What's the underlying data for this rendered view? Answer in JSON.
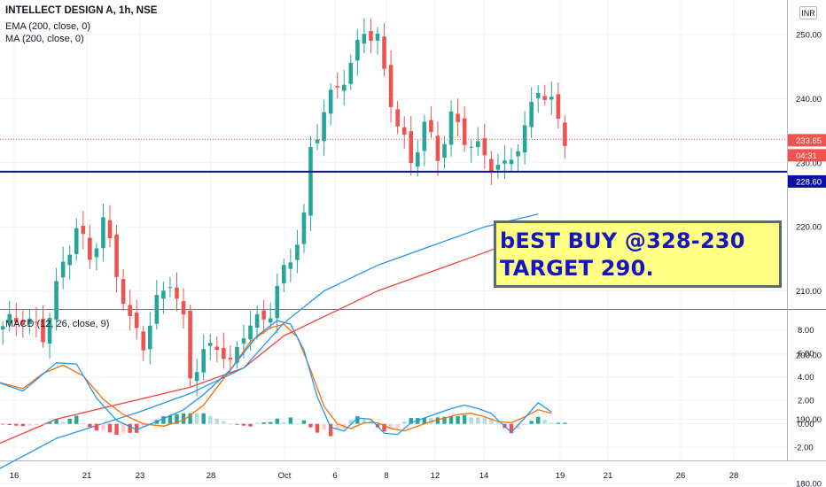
{
  "header": {
    "title": "INTELLECT DESIGN A, 1h, NSE",
    "ema_label": "EMA (200, close, 0)",
    "ma_label": "MA (200, close, 0)",
    "macd_label": "MACD (12, 26, close, 9)",
    "currency": "INR"
  },
  "annotation": {
    "line1": "bEST BUY @328-230",
    "line2": "TARGET 290."
  },
  "price_axis": {
    "ticks": [
      "250.00",
      "240.00",
      "230.00",
      "220.00",
      "210.00",
      "200.00",
      "190.00",
      "180.00"
    ]
  },
  "macd_axis": {
    "ticks": [
      "8.00",
      "6.00",
      "4.00",
      "2.00",
      "0.00",
      "-2.00"
    ]
  },
  "time_axis": {
    "ticks": [
      "16",
      "21",
      "23",
      "28",
      "Oct",
      "6",
      "8",
      "12",
      "14",
      "19",
      "21",
      "26",
      "28"
    ]
  },
  "price_badges": {
    "last": "233.65",
    "countdown": "04:31",
    "level": "228.60"
  },
  "colors": {
    "up": "#26a69a",
    "down": "#ef5350",
    "ema": "#2196f3",
    "ma": "#f44336",
    "level_line": "#0b0fa8",
    "macd_line": "#2196f3",
    "signal_line": "#ff6d00",
    "hist_up_strong": "#26a69a",
    "hist_up_weak": "#b2dfdb",
    "hist_down_strong": "#ef5350",
    "hist_down_weak": "#ffcdd2"
  },
  "chart_data": {
    "type": "candlestick",
    "title": "INTELLECT DESIGN A, 1h, NSE",
    "price_ylim": [
      180,
      255
    ],
    "macd_ylim": [
      -3,
      9
    ],
    "horizontal_level": 228.6,
    "last_price": 233.65,
    "price_path": [
      [
        -1,
        204
      ],
      [
        3,
        206
      ],
      [
        6,
        203
      ],
      [
        9,
        214
      ],
      [
        11,
        220
      ],
      [
        13,
        215
      ],
      [
        15,
        221
      ],
      [
        17,
        213
      ],
      [
        19,
        205
      ],
      [
        21,
        202
      ],
      [
        23,
        208
      ],
      [
        25,
        212
      ],
      [
        27,
        205
      ],
      [
        28,
        197
      ],
      [
        30,
        200
      ],
      [
        32,
        202
      ],
      [
        34,
        198
      ],
      [
        36,
        204
      ],
      [
        38,
        205
      ],
      [
        40,
        207
      ],
      [
        42,
        213
      ],
      [
        44,
        218
      ],
      [
        45,
        221
      ],
      [
        46,
        232
      ],
      [
        48,
        238
      ],
      [
        50,
        242
      ],
      [
        52,
        245
      ],
      [
        54,
        251
      ],
      [
        56,
        249
      ],
      [
        57,
        244
      ],
      [
        59,
        236
      ],
      [
        61,
        230
      ],
      [
        63,
        236
      ],
      [
        65,
        231
      ],
      [
        67,
        237
      ],
      [
        69,
        234
      ],
      [
        71,
        232
      ],
      [
        73,
        230
      ],
      [
        75,
        229
      ],
      [
        76,
        231
      ],
      [
        78,
        235
      ],
      [
        80,
        242
      ],
      [
        82,
        239
      ],
      [
        84,
        234
      ]
    ],
    "ema200": [
      [
        -1,
        182
      ],
      [
        8,
        187
      ],
      [
        20,
        191
      ],
      [
        28,
        194
      ],
      [
        36,
        198
      ],
      [
        42,
        205
      ],
      [
        48,
        210
      ],
      [
        56,
        214
      ],
      [
        64,
        217
      ],
      [
        72,
        220
      ],
      [
        80,
        222
      ]
    ],
    "ma200": [
      [
        -1,
        186
      ],
      [
        8,
        190
      ],
      [
        20,
        193
      ],
      [
        28,
        195
      ],
      [
        36,
        198
      ],
      [
        42,
        203
      ],
      [
        48,
        206
      ],
      [
        56,
        210
      ],
      [
        64,
        213
      ],
      [
        72,
        216
      ],
      [
        80,
        219
      ]
    ],
    "macd": [
      [
        -1,
        3.6
      ],
      [
        3,
        2.8
      ],
      [
        8,
        5.2
      ],
      [
        11,
        5.1
      ],
      [
        14,
        2.2
      ],
      [
        17,
        0.3
      ],
      [
        20,
        -0.5
      ],
      [
        23,
        0.2
      ],
      [
        27,
        1.2
      ],
      [
        30,
        2.5
      ],
      [
        34,
        4.6
      ],
      [
        38,
        7.5
      ],
      [
        41,
        8.8
      ],
      [
        43,
        8.5
      ],
      [
        45,
        6.3
      ],
      [
        47,
        2.3
      ],
      [
        49,
        -0.3
      ],
      [
        51,
        -0.6
      ],
      [
        53,
        0.5
      ],
      [
        55,
        0.4
      ],
      [
        57,
        -0.8
      ],
      [
        59,
        -0.9
      ],
      [
        61,
        0.1
      ],
      [
        63,
        0.5
      ],
      [
        65,
        0.9
      ],
      [
        67,
        1.3
      ],
      [
        69,
        1.6
      ],
      [
        71,
        1.3
      ],
      [
        73,
        0.9
      ],
      [
        74,
        0.3
      ],
      [
        76,
        -0.7
      ],
      [
        78,
        0.5
      ],
      [
        80,
        1.8
      ],
      [
        82,
        1.0
      ]
    ],
    "signal": [
      [
        -1,
        3.6
      ],
      [
        3,
        3.0
      ],
      [
        6,
        4.3
      ],
      [
        9,
        5.0
      ],
      [
        12,
        4.1
      ],
      [
        15,
        2.1
      ],
      [
        18,
        0.8
      ],
      [
        21,
        0.0
      ],
      [
        24,
        -0.2
      ],
      [
        27,
        0.3
      ],
      [
        30,
        1.6
      ],
      [
        34,
        4.6
      ],
      [
        37,
        7.0
      ],
      [
        40,
        8.2
      ],
      [
        42,
        8.5
      ],
      [
        44,
        7.4
      ],
      [
        46,
        4.6
      ],
      [
        48,
        1.5
      ],
      [
        50,
        0.0
      ],
      [
        52,
        -0.4
      ],
      [
        54,
        0.1
      ],
      [
        56,
        0.1
      ],
      [
        58,
        -0.4
      ],
      [
        60,
        -0.6
      ],
      [
        62,
        -0.2
      ],
      [
        64,
        0.2
      ],
      [
        66,
        0.5
      ],
      [
        68,
        0.8
      ],
      [
        70,
        0.9
      ],
      [
        72,
        0.6
      ],
      [
        74,
        0.2
      ],
      [
        76,
        0.1
      ],
      [
        78,
        0.6
      ],
      [
        80,
        1.2
      ],
      [
        82,
        0.9
      ]
    ]
  }
}
